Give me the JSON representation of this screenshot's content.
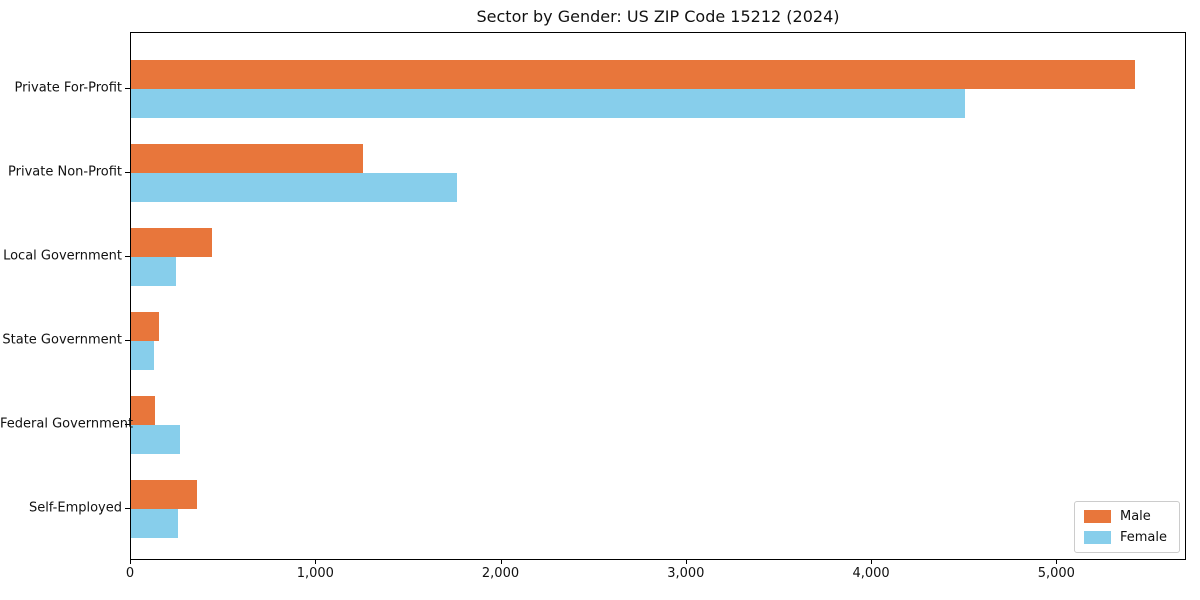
{
  "chart_data": {
    "type": "bar",
    "orientation": "horizontal",
    "title": "Sector by Gender: US ZIP Code 15212 (2024)",
    "categories": [
      "Private For-Profit",
      "Private Non-Profit",
      "Local Government",
      "State Government",
      "Federal Government",
      "Self-Employed"
    ],
    "series": [
      {
        "name": "Male",
        "color": "#E8763B",
        "values": [
          5420,
          1250,
          435,
          150,
          130,
          355
        ]
      },
      {
        "name": "Female",
        "color": "#87CEEB",
        "values": [
          4500,
          1760,
          240,
          125,
          265,
          255
        ]
      }
    ],
    "xlabel": "",
    "ylabel": "",
    "xlim": [
      0,
      5700
    ],
    "x_ticks": [
      0,
      1000,
      2000,
      3000,
      4000,
      5000
    ],
    "x_tick_labels": [
      "0",
      "1,000",
      "2,000",
      "3,000",
      "4,000",
      "5,000"
    ],
    "grid": false,
    "legend_position": "lower right"
  },
  "colors": {
    "background": "#ffffff",
    "spine": "#000000",
    "text": "#111111",
    "legend_border": "#cccccc"
  }
}
